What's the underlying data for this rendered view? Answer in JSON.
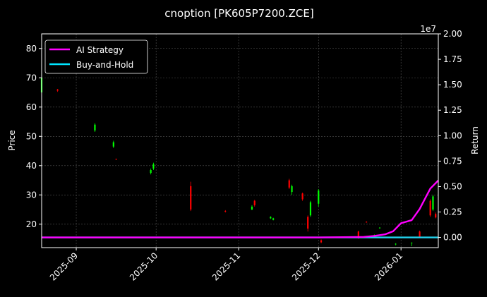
{
  "chart_data": {
    "type": "candlestick-line-combo",
    "title": "cnoption [PK605P7200.ZCE]",
    "x_tick_labels": [
      "2025-09",
      "2025-10",
      "2025-11",
      "2025-12",
      "2026-01"
    ],
    "x_ticks": [
      "2025-09-01",
      "2025-10-01",
      "2025-11-01",
      "2025-12-01",
      "2026-01-01"
    ],
    "xlim": [
      "2025-08-19",
      "2026-01-15"
    ],
    "left_axis": {
      "label": "Price",
      "ylim": [
        12,
        85
      ],
      "ticks": [
        20,
        30,
        40,
        50,
        60,
        70,
        80
      ]
    },
    "right_axis": {
      "label": "Return",
      "offset_text": "1e7",
      "ylim": [
        -0.1,
        2.0
      ],
      "ticks": [
        0.0,
        0.25,
        0.5,
        0.75,
        1.0,
        1.25,
        1.5,
        1.75,
        2.0
      ],
      "tick_labels": [
        "0.00",
        "0.25",
        "0.50",
        "0.75",
        "1.00",
        "1.25",
        "1.50",
        "1.75",
        "2.00"
      ]
    },
    "grid": true,
    "legend": {
      "position": "top-left",
      "entries": [
        {
          "name": "AI Strategy",
          "color": "#ff00ff"
        },
        {
          "name": "Buy-and-Hold",
          "color": "#00e5ff"
        }
      ]
    },
    "colors": {
      "up": "#00ff00",
      "down": "#ff0000",
      "ai": "#ff00ff",
      "bh": "#22d3ee",
      "background": "#000000"
    },
    "candles": [
      {
        "date": "2025-08-19",
        "open": 65,
        "high": 72,
        "low": 64,
        "close": 70
      },
      {
        "date": "2025-08-25",
        "open": 66,
        "high": 66.2,
        "low": 65.2,
        "close": 65.6
      },
      {
        "date": "2025-09-08",
        "open": 52,
        "high": 54.5,
        "low": 51.5,
        "close": 54
      },
      {
        "date": "2025-09-15",
        "open": 46.5,
        "high": 48.5,
        "low": 46,
        "close": 48
      },
      {
        "date": "2025-09-16",
        "open": 42.3,
        "high": 42.4,
        "low": 41.9,
        "close": 42.1
      },
      {
        "date": "2025-09-29",
        "open": 37.5,
        "high": 39,
        "low": 37,
        "close": 38.5
      },
      {
        "date": "2025-09-30",
        "open": 39,
        "high": 41,
        "low": 38.5,
        "close": 40.5
      },
      {
        "date": "2025-10-14",
        "open": 33,
        "high": 34.5,
        "low": 24.5,
        "close": 25
      },
      {
        "date": "2025-10-27",
        "open": 24.5,
        "high": 24.8,
        "low": 24,
        "close": 24.3
      },
      {
        "date": "2025-11-06",
        "open": 25,
        "high": 26.5,
        "low": 24.8,
        "close": 26
      },
      {
        "date": "2025-11-07",
        "open": 28,
        "high": 28.3,
        "low": 26,
        "close": 26.5
      },
      {
        "date": "2025-11-13",
        "open": 22,
        "high": 22.7,
        "low": 21.8,
        "close": 22.5
      },
      {
        "date": "2025-11-14",
        "open": 21.5,
        "high": 22.2,
        "low": 21.3,
        "close": 22
      },
      {
        "date": "2025-11-20",
        "open": 35,
        "high": 35.5,
        "low": 32,
        "close": 32.5
      },
      {
        "date": "2025-11-21",
        "open": 31,
        "high": 33.5,
        "low": 30,
        "close": 33
      },
      {
        "date": "2025-11-25",
        "open": 30.5,
        "high": 30.8,
        "low": 28,
        "close": 28.5
      },
      {
        "date": "2025-11-27",
        "open": 22.5,
        "high": 23,
        "low": 17.5,
        "close": 18.5
      },
      {
        "date": "2025-11-28",
        "open": 23,
        "high": 28,
        "low": 22.5,
        "close": 27.5
      },
      {
        "date": "2025-12-01",
        "open": 27,
        "high": 32,
        "low": 26,
        "close": 31.5
      },
      {
        "date": "2025-12-02",
        "open": 14.5,
        "high": 14.8,
        "low": 13.5,
        "close": 13.8
      },
      {
        "date": "2025-12-16",
        "open": 17.5,
        "high": 17.8,
        "low": 15,
        "close": 15.5
      },
      {
        "date": "2025-12-19",
        "open": 20.8,
        "high": 21,
        "low": 20.5,
        "close": 20.7
      },
      {
        "date": "2025-12-22",
        "open": 15.5,
        "high": 16.5,
        "low": 15.3,
        "close": 16.3
      },
      {
        "date": "2025-12-24",
        "open": 18.7,
        "high": 19,
        "low": 18.5,
        "close": 18.8
      },
      {
        "date": "2025-12-30",
        "open": 13.2,
        "high": 13.5,
        "low": 12.8,
        "close": 13.3
      },
      {
        "date": "2026-01-05",
        "open": 13.5,
        "high": 13.8,
        "low": 12.5,
        "close": 13.7
      },
      {
        "date": "2026-01-08",
        "open": 17.5,
        "high": 17.8,
        "low": 15.3,
        "close": 15.5
      },
      {
        "date": "2026-01-12",
        "open": 28,
        "high": 28.5,
        "low": 22.5,
        "close": 23
      },
      {
        "date": "2026-01-13",
        "open": 25,
        "high": 30,
        "low": 24.5,
        "close": 29.5
      },
      {
        "date": "2026-01-14",
        "open": 23.5,
        "high": 24,
        "low": 22,
        "close": 22.3
      }
    ],
    "series": [
      {
        "name": "AI Strategy",
        "x": [
          "2025-08-19",
          "2025-12-01",
          "2025-12-18",
          "2025-12-22",
          "2025-12-26",
          "2025-12-29",
          "2026-01-01",
          "2026-01-05",
          "2026-01-08",
          "2026-01-10",
          "2026-01-12",
          "2026-01-15"
        ],
        "values": [
          0,
          0,
          0.005,
          0.015,
          0.03,
          0.06,
          0.14,
          0.17,
          0.28,
          0.38,
          0.48,
          0.56
        ]
      },
      {
        "name": "Buy-and-Hold",
        "x": [
          "2025-08-19",
          "2026-01-15"
        ],
        "values": [
          0,
          0
        ]
      }
    ]
  }
}
